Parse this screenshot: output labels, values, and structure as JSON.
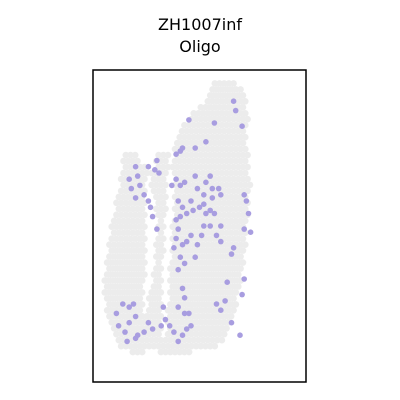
{
  "chart_data": {
    "type": "scatter",
    "title": "ZH1007inf",
    "subtitle": "Oligo",
    "xlabel": "",
    "ylabel": "",
    "xlim": [
      0,
      100
    ],
    "ylim": [
      0,
      100
    ],
    "axes_visible": false,
    "grid": false,
    "background_color": "#ececec",
    "highlight_color": "#a89de0",
    "background_spot_spacing": 2.2,
    "tissue_outline": [
      [
        57,
        97
      ],
      [
        65,
        97
      ],
      [
        69,
        95
      ],
      [
        72,
        90
      ],
      [
        73,
        84
      ],
      [
        72,
        78
      ],
      [
        73,
        70
      ],
      [
        74,
        62
      ],
      [
        73,
        55
      ],
      [
        72,
        48
      ],
      [
        71,
        38
      ],
      [
        69,
        29
      ],
      [
        66,
        21
      ],
      [
        62,
        13
      ],
      [
        55,
        10
      ],
      [
        48,
        10
      ],
      [
        43,
        9
      ],
      [
        36,
        9
      ],
      [
        27,
        10
      ],
      [
        20,
        9
      ],
      [
        13,
        11
      ],
      [
        10,
        14
      ],
      [
        7,
        20
      ],
      [
        5,
        28
      ],
      [
        6,
        38
      ],
      [
        8,
        49
      ],
      [
        11,
        58
      ],
      [
        13,
        66
      ],
      [
        14,
        72
      ],
      [
        17,
        74
      ],
      [
        21,
        73
      ],
      [
        25,
        68
      ],
      [
        28,
        67
      ],
      [
        30,
        72
      ],
      [
        33,
        75
      ],
      [
        35,
        74
      ],
      [
        37,
        70
      ],
      [
        39,
        78
      ],
      [
        43,
        83
      ],
      [
        46,
        86
      ],
      [
        50,
        88
      ],
      [
        53,
        91
      ]
    ],
    "gap_left": [
      [
        26,
        66
      ],
      [
        29,
        60
      ],
      [
        30,
        50
      ],
      [
        29,
        40
      ],
      [
        27,
        30
      ],
      [
        25,
        22
      ],
      [
        23,
        22
      ],
      [
        24,
        32
      ],
      [
        25,
        43
      ],
      [
        25,
        55
      ],
      [
        24,
        63
      ]
    ],
    "gap_mid": [
      [
        36,
        72
      ],
      [
        38,
        66
      ],
      [
        38,
        58
      ],
      [
        37,
        45
      ],
      [
        36,
        34
      ],
      [
        35,
        22
      ],
      [
        34,
        14
      ],
      [
        32,
        14
      ],
      [
        32,
        26
      ],
      [
        33,
        40
      ],
      [
        34,
        53
      ],
      [
        35,
        65
      ]
    ],
    "highlighted_spots": [
      [
        66,
        90
      ],
      [
        67,
        87
      ],
      [
        70,
        82
      ],
      [
        45,
        84
      ],
      [
        57,
        83
      ],
      [
        53,
        77
      ],
      [
        48,
        75
      ],
      [
        41,
        74
      ],
      [
        39,
        73
      ],
      [
        30,
        71
      ],
      [
        29,
        68
      ],
      [
        26,
        69
      ],
      [
        31,
        67
      ],
      [
        20,
        69
      ],
      [
        21,
        66
      ],
      [
        17,
        65
      ],
      [
        22,
        63
      ],
      [
        24,
        60
      ],
      [
        18,
        62
      ],
      [
        20,
        59
      ],
      [
        26,
        58
      ],
      [
        27,
        56
      ],
      [
        28,
        53
      ],
      [
        30,
        49
      ],
      [
        42,
        75
      ],
      [
        39,
        65
      ],
      [
        37,
        63
      ],
      [
        41,
        63
      ],
      [
        53,
        64
      ],
      [
        56,
        59
      ],
      [
        59,
        62
      ],
      [
        60,
        60
      ],
      [
        71,
        60
      ],
      [
        72,
        58
      ],
      [
        73,
        54
      ],
      [
        71,
        49
      ],
      [
        74,
        48
      ],
      [
        66,
        43
      ],
      [
        65,
        41
      ],
      [
        55,
        66
      ],
      [
        48,
        66
      ],
      [
        43,
        64
      ],
      [
        40,
        58
      ],
      [
        41,
        53
      ],
      [
        39,
        52
      ],
      [
        42,
        56
      ],
      [
        44,
        54
      ],
      [
        46,
        58
      ],
      [
        47,
        55
      ],
      [
        50,
        56
      ],
      [
        52,
        57
      ],
      [
        53,
        54
      ],
      [
        55,
        55
      ],
      [
        57,
        54
      ],
      [
        60,
        50
      ],
      [
        58,
        47
      ],
      [
        55,
        50
      ],
      [
        52,
        50
      ],
      [
        51,
        47
      ],
      [
        49,
        44
      ],
      [
        48,
        40
      ],
      [
        46,
        47
      ],
      [
        44,
        45
      ],
      [
        42,
        44
      ],
      [
        40,
        49
      ],
      [
        39,
        46
      ],
      [
        38,
        43
      ],
      [
        41,
        40
      ],
      [
        40,
        36
      ],
      [
        43,
        38
      ],
      [
        42,
        30
      ],
      [
        43,
        27
      ],
      [
        40,
        24
      ],
      [
        43,
        22
      ],
      [
        45,
        22
      ],
      [
        46,
        18
      ],
      [
        44,
        17
      ],
      [
        42,
        15
      ],
      [
        40,
        13
      ],
      [
        38,
        16
      ],
      [
        36,
        18
      ],
      [
        34,
        20
      ],
      [
        33,
        24
      ],
      [
        32,
        18
      ],
      [
        28,
        17
      ],
      [
        26,
        19
      ],
      [
        24,
        16
      ],
      [
        21,
        15
      ],
      [
        20,
        14
      ],
      [
        15,
        16
      ],
      [
        16,
        13
      ],
      [
        17,
        19
      ],
      [
        19,
        25
      ],
      [
        20,
        21
      ],
      [
        14,
        25
      ],
      [
        17,
        24
      ],
      [
        11,
        22
      ],
      [
        12,
        18
      ],
      [
        63,
        32
      ],
      [
        58,
        25
      ],
      [
        62,
        26
      ],
      [
        60,
        23
      ],
      [
        65,
        19
      ],
      [
        69,
        15
      ],
      [
        70,
        28
      ],
      [
        71,
        33
      ],
      [
        60,
        45
      ],
      [
        56,
        62
      ],
      [
        52,
        60
      ],
      [
        49,
        62
      ]
    ]
  }
}
